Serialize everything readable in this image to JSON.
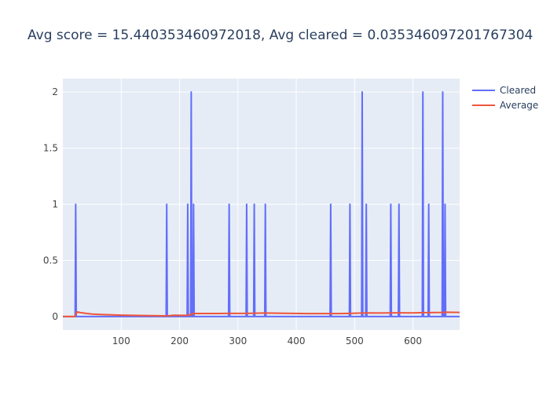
{
  "chart_data": {
    "type": "line",
    "title": "Avg score = 15.440353460972018, Avg cleared = 0.035346097201767304",
    "xlabel": "",
    "ylabel": "",
    "xlim": [
      0,
      680
    ],
    "ylim": [
      -0.12,
      2.12
    ],
    "grid": true,
    "legend_position": "top-right",
    "x_ticks": [
      100,
      200,
      300,
      400,
      500,
      600
    ],
    "x_tick_labels": [
      "100",
      "200",
      "300",
      "400",
      "500",
      "600"
    ],
    "y_ticks": [
      0,
      0.5,
      1,
      1.5,
      2
    ],
    "y_tick_labels": [
      "0",
      "0.5",
      "1",
      "1.5",
      "2"
    ],
    "colors": {
      "plot_bg": "#e5ecf6",
      "grid": "#ffffff",
      "cleared": "#636efa",
      "average": "#ef553b",
      "text": "#2a3f5f",
      "tick_text": "#444444"
    },
    "spikes": [
      {
        "x": 22,
        "y": 1
      },
      {
        "x": 178,
        "y": 1
      },
      {
        "x": 214,
        "y": 1
      },
      {
        "x": 220,
        "y": 2
      },
      {
        "x": 224,
        "y": 1
      },
      {
        "x": 285,
        "y": 1
      },
      {
        "x": 315,
        "y": 1
      },
      {
        "x": 328,
        "y": 1
      },
      {
        "x": 347,
        "y": 1
      },
      {
        "x": 459,
        "y": 1
      },
      {
        "x": 492,
        "y": 1
      },
      {
        "x": 513,
        "y": 2
      },
      {
        "x": 520,
        "y": 1
      },
      {
        "x": 562,
        "y": 1
      },
      {
        "x": 576,
        "y": 1
      },
      {
        "x": 617,
        "y": 2
      },
      {
        "x": 627,
        "y": 1
      },
      {
        "x": 651,
        "y": 2
      },
      {
        "x": 655,
        "y": 1
      }
    ],
    "series": [
      {
        "name": "Cleared",
        "color": "#636efa",
        "x_start": 0,
        "x_end": 680,
        "baseline": 0
      },
      {
        "name": "Average",
        "color": "#ef553b",
        "x": [
          0,
          21,
          24,
          30,
          40,
          50,
          70,
          100,
          140,
          178,
          190,
          213,
          214,
          219,
          220,
          223,
          224,
          226,
          260,
          285,
          300,
          315,
          330,
          347,
          380,
          420,
          459,
          470,
          492,
          513,
          520,
          540,
          562,
          576,
          600,
          617,
          627,
          651,
          655,
          680
        ],
        "y": [
          0,
          0,
          0.042,
          0.035,
          0.028,
          0.022,
          0.017,
          0.012,
          0.009,
          0.0056,
          0.011,
          0.01,
          0.014,
          0.014,
          0.023,
          0.022,
          0.027,
          0.027,
          0.027,
          0.028,
          0.028,
          0.028,
          0.03,
          0.031,
          0.029,
          0.026,
          0.026,
          0.026,
          0.028,
          0.031,
          0.032,
          0.031,
          0.032,
          0.033,
          0.032,
          0.035,
          0.035,
          0.037,
          0.038,
          0.037
        ]
      }
    ]
  }
}
